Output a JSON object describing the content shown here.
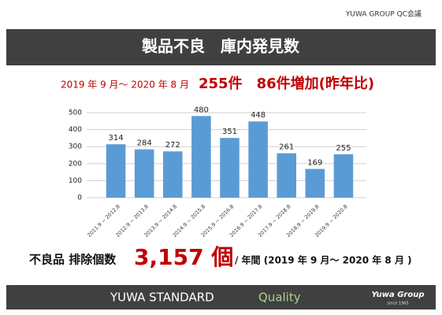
{
  "header": {
    "label": "YUWA GROUP QC会議"
  },
  "chart_data": {
    "type": "bar",
    "title": "製品不良　庫内発見数",
    "period": "2019 年 9 月～ 2020 年 8 月",
    "highlight": "255件　86件増加(昨年比)",
    "categories": [
      "2011.9 ~ 2012.8",
      "2012.9 ~ 2013.8",
      "2013.9 ~ 2014.8",
      "2014.9 ~ 2015.8",
      "2015.9 ~ 2016.8",
      "2016.9 ~ 2017.8",
      "2017.9 ~ 2018.8",
      "2018.9 ~ 2019.8",
      "2019.9 ~ 2020.8"
    ],
    "values": [
      314,
      284,
      272,
      480,
      351,
      448,
      261,
      169,
      255
    ],
    "color": "#5b9bd5",
    "ylim": [
      0,
      500
    ],
    "yticks": [
      0,
      100,
      200,
      300,
      400,
      500
    ],
    "grid": true
  },
  "summary": {
    "label": "不良品 排除個数",
    "total": "3,157 個",
    "note": "/ 年間 (2019 年 9 月～ 2020 年 8 月 )"
  },
  "footer": {
    "brand": "YUWA STANDARD",
    "quality": "Quality",
    "logo": "Yuwa Group",
    "since": "since 1965"
  }
}
